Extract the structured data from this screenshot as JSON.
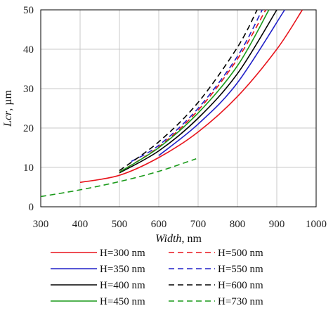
{
  "chart_data": {
    "type": "line",
    "title": "",
    "xlabel": {
      "italic": "Width",
      "rest": ", nm"
    },
    "ylabel": {
      "italic": "Lcr",
      "rest": ", µm"
    },
    "xlim": [
      300,
      1000
    ],
    "ylim": [
      0,
      50
    ],
    "xticks": [
      300,
      400,
      500,
      600,
      700,
      800,
      900,
      1000
    ],
    "yticks": [
      0,
      10,
      20,
      30,
      40,
      50
    ],
    "grid": true,
    "legend_position": "bottom",
    "series": [
      {
        "name": "H=300 nm",
        "color": "#e8141c",
        "dash": "solid",
        "points": [
          [
            400,
            6.2
          ],
          [
            500,
            8.0
          ],
          [
            600,
            12.5
          ],
          [
            700,
            19.0
          ],
          [
            800,
            28.0
          ],
          [
            900,
            40.0
          ],
          [
            965,
            50.0
          ]
        ]
      },
      {
        "name": "H=500 nm",
        "color": "#e8141c",
        "dash": "dashed",
        "points": [
          [
            500,
            8.8
          ],
          [
            600,
            15.2
          ],
          [
            700,
            24.5
          ],
          [
            800,
            37.5
          ],
          [
            872,
            50.0
          ]
        ]
      },
      {
        "name": "H=350 nm",
        "color": "#2020c8",
        "dash": "solid",
        "points": [
          [
            600,
            13.0
          ],
          [
            700,
            21.0
          ],
          [
            800,
            31.5
          ],
          [
            920,
            50.0
          ]
        ]
      },
      {
        "name": "H=550 nm",
        "color": "#2020c8",
        "dash": "dashed",
        "points": [
          [
            530,
            11.5
          ],
          [
            600,
            15.6
          ],
          [
            700,
            25.0
          ],
          [
            800,
            38.2
          ],
          [
            863,
            50.0
          ]
        ]
      },
      {
        "name": "H=400 nm",
        "color": "#000000",
        "dash": "solid",
        "points": [
          [
            500,
            8.6
          ],
          [
            600,
            14.2
          ],
          [
            700,
            22.5
          ],
          [
            800,
            33.8
          ],
          [
            900,
            50.0
          ]
        ]
      },
      {
        "name": "H=600 nm",
        "color": "#000000",
        "dash": "dashed",
        "points": [
          [
            500,
            9.2
          ],
          [
            600,
            16.5
          ],
          [
            700,
            26.5
          ],
          [
            800,
            40.5
          ],
          [
            850,
            50.0
          ]
        ]
      },
      {
        "name": "H=450 nm",
        "color": "#1a9a1a",
        "dash": "solid",
        "points": [
          [
            500,
            8.8
          ],
          [
            600,
            15.0
          ],
          [
            700,
            23.8
          ],
          [
            800,
            35.8
          ],
          [
            880,
            50.0
          ]
        ]
      },
      {
        "name": "H=730 nm",
        "color": "#1a9a1a",
        "dash": "dashed",
        "points": [
          [
            300,
            2.6
          ],
          [
            400,
            4.3
          ],
          [
            500,
            6.4
          ],
          [
            600,
            9.0
          ],
          [
            695,
            12.2
          ]
        ]
      }
    ]
  }
}
